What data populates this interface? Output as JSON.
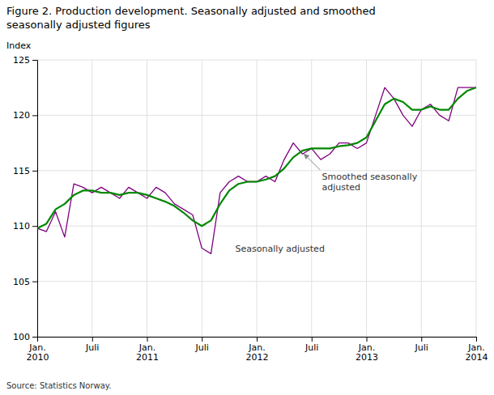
{
  "chart_data": {
    "type": "line",
    "title": "Figure 2. Production development. Seasonally adjusted and smoothed\nseasonally adjusted figures",
    "y_label": "Index",
    "source": "Source: Statistics Norway.",
    "annotations": [
      "Seasonally adjusted",
      "Smoothed seasonally\nadjusted"
    ],
    "categories": [
      "Jan.\n2010",
      null,
      null,
      null,
      null,
      null,
      "Juli",
      null,
      null,
      null,
      null,
      null,
      "Jan.\n2011",
      null,
      null,
      null,
      null,
      null,
      "Juli",
      null,
      null,
      null,
      null,
      null,
      "Jan.\n2012",
      null,
      null,
      null,
      null,
      null,
      "Juli",
      null,
      null,
      null,
      null,
      null,
      "Jan.\n2013",
      null,
      null,
      null,
      null,
      null,
      "Juli",
      null,
      null,
      null,
      null,
      null,
      "Jan.\n2014"
    ],
    "series": [
      {
        "color": "#800080",
        "values": [
          109.8,
          109.5,
          111.3,
          109.0,
          113.8,
          113.5,
          113.0,
          113.5,
          113.0,
          112.5,
          113.5,
          113.0,
          112.5,
          113.5,
          113.0,
          112.0,
          111.5,
          111.0,
          108.0,
          107.5,
          113.0,
          114.0,
          114.5,
          114.0,
          114.0,
          114.5,
          114.0,
          116.0,
          117.5,
          116.5,
          117.0,
          116.0,
          116.5,
          117.5,
          117.5,
          117.0,
          117.5,
          120.0,
          122.5,
          121.5,
          120.0,
          119.0,
          120.5,
          121.0,
          120.0,
          119.5,
          122.5,
          122.5,
          122.5
        ]
      },
      {
        "color": "#008800",
        "values": [
          109.8,
          110.2,
          111.5,
          112.0,
          112.8,
          113.2,
          113.2,
          113.0,
          113.0,
          112.8,
          113.0,
          113.0,
          112.8,
          112.5,
          112.2,
          111.8,
          111.2,
          110.5,
          110.0,
          110.5,
          112.0,
          113.2,
          113.8,
          114.0,
          114.0,
          114.2,
          114.5,
          115.2,
          116.2,
          116.8,
          117.0,
          117.0,
          117.0,
          117.2,
          117.3,
          117.5,
          118.0,
          119.5,
          121.0,
          121.5,
          121.2,
          120.5,
          120.5,
          120.8,
          120.5,
          120.5,
          121.5,
          122.2,
          122.5
        ]
      }
    ],
    "ylim": [
      100,
      125
    ],
    "yticks": [
      100,
      105,
      110,
      115,
      120,
      125
    ],
    "grid": true
  }
}
